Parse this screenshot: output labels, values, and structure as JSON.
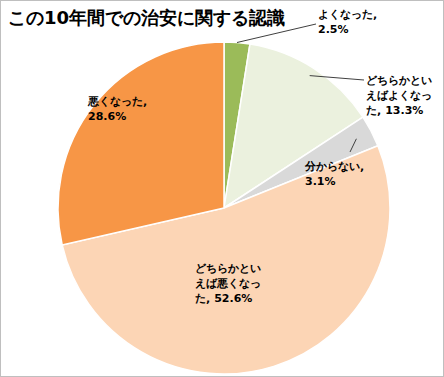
{
  "chart_data": {
    "type": "pie",
    "title": "この10年間での治安に関する認識",
    "categories": [
      "よくなった,",
      "どちらかといえばよくなった,",
      "分からない,",
      "どちらかといえば悪くなった,",
      "悪くなった,"
    ],
    "values": [
      2.5,
      13.3,
      3.1,
      52.6,
      28.6
    ],
    "value_labels": [
      "2.5%",
      "13.3%",
      "3.1%",
      "52.6%",
      "28.6%"
    ],
    "colors": [
      "#9bbb59",
      "#ebf1de",
      "#d9d9d9",
      "#fcd5b5",
      "#f79646"
    ],
    "data_labels": true
  }
}
